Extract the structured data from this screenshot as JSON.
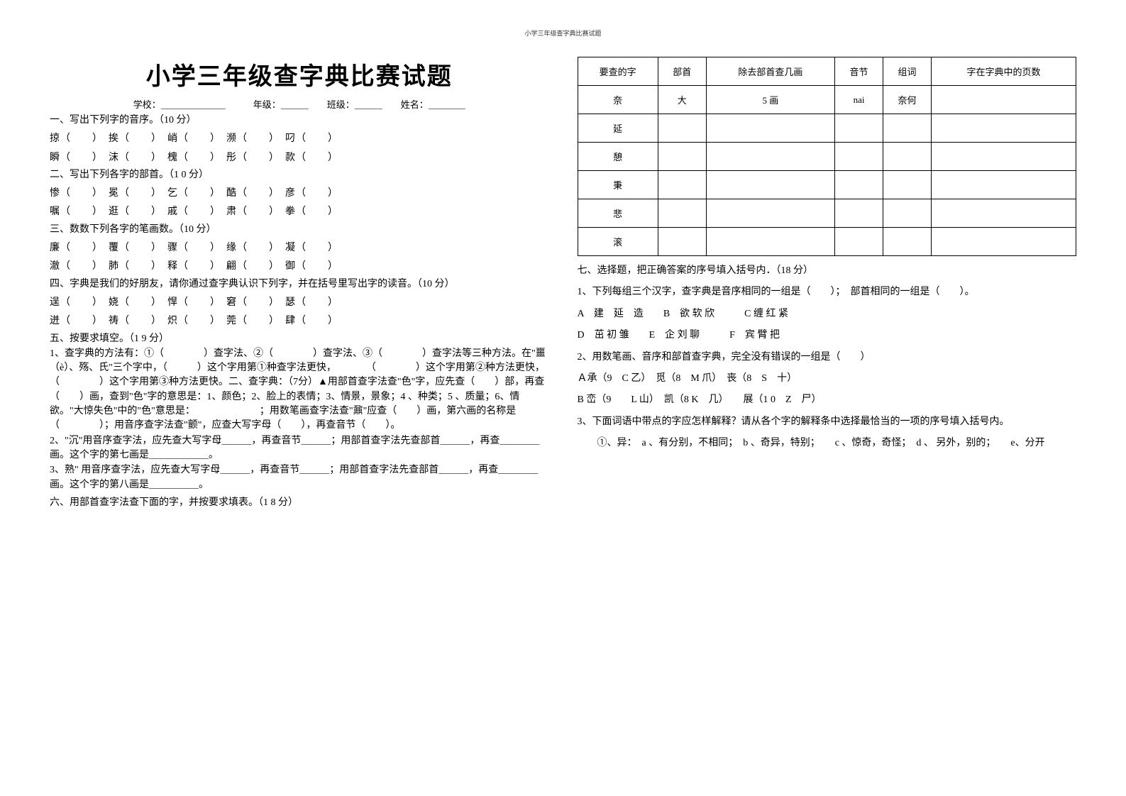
{
  "header_small": "小学三年级查字典比赛试题",
  "title": "小学三年级查字典比赛试题",
  "info": "学校：＿＿＿＿＿＿＿　　　年级：＿＿＿　　班级：＿＿＿　　姓名：＿＿＿＿",
  "s1": {
    "h": "一、写出下列字的音序。（10 分）",
    "l1": "掠（　　）　挨（　　）　峭（　　）　濒（　　）　叼（　　）",
    "l2": "瞬（　　）　沫（　　）　槐（　　）　彤（　　）　款（　　）"
  },
  "s2": {
    "h": "二、写出下列各字的部首。（1 0 分）",
    "l1": "惨（　　）　冕（　　）　乞（　　）　酷（　　）　彦（　　）",
    "l2": "嘱（　　）　逛（　　）　戚（　　）　肃（　　）　拳（　　）"
  },
  "s3": {
    "h": "三、数数下列各字的笔画数。（10 分）",
    "l1": "廉（　　）　覆（　　）　骤（　　）　缘（　　）　凝（　　）",
    "l2": "澈（　　）　肺（　　）　释（　　）　翩（　　）　御（　　）"
  },
  "s4": {
    "h": "四、字典是我们的好朋友，请你通过查字典认识下列字，并在括号里写出字的读音。（10 分）",
    "l1": "逞（　　）　娆（　　）　悍（　　）　窘（　　）　瑟（　　）",
    "l2": "迸（　　）　祷（　　）　炽（　　）　莞（　　）　肆（　　）"
  },
  "s5": {
    "h": "五、按要求填空。（1 9 分）",
    "p1": "1、查字典的方法有：①（　　　　）查字法、②（　　　　）查字法、③（　　　　）查字法等三种方法。在\"噩（è）、殇、氏\"三个字中，（　　　）这个字用第①种查字法更快，　　　　（　　　　）这个字用第②种方法更快，（　　　　）这个字用第③种方法更快。二、查字典：（7分）▲用部首查字法查\"色\"字，应先查（　　）部，再查（　　）画，查到\"色\"字的意思是：1、颜色；2、脸上的表情；3、情景，景象；4 、种类；5 、质量；6、情欲。\"大惊失色\"中的\"色\"意思是：　　　　　　　；用数笔画查字法查\"鼐\"应查（　　）画，第六画的名称是（　　　　）；用音序查字法查\"颤\"，应查大写字母（　　），再查音节（　　）。",
    "p2": "2、\"沉\"用音序查字法，应先查大写字母＿＿＿，再查音节＿＿＿；用部首查字法先查部首＿＿＿，再查＿＿＿＿画。这个字的第七画是＿＿＿＿＿＿。",
    "p3": "3、熟\" 用音序查字法，应先查大写字母＿＿＿，再查音节＿＿＿；用部首查字法先查部首＿＿＿，再查＿＿＿＿画。这个字的第八画是＿＿＿＿＿。"
  },
  "s6": {
    "h": "六、用部首查字法查下面的字，并按要求填表。（1 8 分）"
  },
  "table": {
    "headers": [
      "要查的字",
      "部首",
      "除去部首查几画",
      "音节",
      "组词",
      "字在字典中的页数"
    ],
    "rows": [
      [
        "奈",
        "大",
        "5 画",
        "nai",
        "奈何",
        ""
      ],
      [
        "延",
        "",
        "",
        "",
        "",
        ""
      ],
      [
        "憩",
        "",
        "",
        "",
        "",
        ""
      ],
      [
        "秉",
        "",
        "",
        "",
        "",
        ""
      ],
      [
        "悲",
        "",
        "",
        "",
        "",
        ""
      ],
      [
        "滚",
        "",
        "",
        "",
        "",
        ""
      ]
    ]
  },
  "s7": {
    "h": "七、选择题，把正确答案的序号填入括号内．（18 分）",
    "q1": "1、下列每组三个汉字，查字典是音序相同的一组是（　　）；　部首相同的一组是（　　）。",
    "q1a": "A　建　延　造　　B　欲 软 欣　　　C 缠 红 紧",
    "q1b": "D　茁 初 雏　　E　企 刘 聊　　　F　宾 臂 把",
    "q2": "2、用数笔画、音序和部首查字典，完全没有错误的一组是（　　）",
    "q2a": "Ａ承（9　C 乙）　觅（8　M 爪）　丧（8　S　十）",
    "q2b": "B 峦（9　　L 山）　凯（8 K　几）　　展（1 0　Z　尸）",
    "q3": "3、下面词语中带点的字应怎样解释？请从各个字的解释条中选择最恰当的一项的序号填入括号内。",
    "q3a": "①、异：　a 、有分别，不相同；　b 、奇异，特别；　　c 、惊奇，奇怪；　d 、 另外，别的；　　e、分开"
  }
}
